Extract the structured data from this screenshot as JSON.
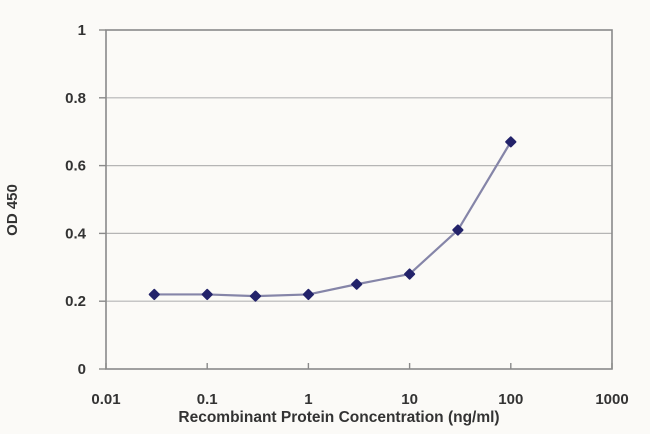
{
  "chart_data": {
    "type": "line",
    "title": "",
    "xlabel": "Recombinant Protein Concentration (ng/ml)",
    "ylabel": "OD 450",
    "x_scale": "log",
    "xlim": [
      0.01,
      1000
    ],
    "ylim": [
      0,
      1
    ],
    "x_ticks": [
      0.01,
      0.1,
      1,
      10,
      100,
      1000
    ],
    "x_tick_labels": [
      "0.01",
      "0.1",
      "1",
      "10",
      "100",
      "1000"
    ],
    "y_ticks": [
      0,
      0.2,
      0.4,
      0.6,
      0.8,
      1
    ],
    "y_tick_labels": [
      "0",
      "0.2",
      "0.4",
      "0.6",
      "0.8",
      "1"
    ],
    "grid": "horizontal",
    "legend": "none",
    "series": [
      {
        "x": [
          0.03,
          0.1,
          0.3,
          1,
          3,
          10,
          30,
          100
        ],
        "y": [
          0.22,
          0.22,
          0.215,
          0.22,
          0.25,
          0.28,
          0.41,
          0.67
        ],
        "marker": "diamond",
        "marker_color": "#23236a",
        "line_color": "#8585a8"
      }
    ]
  },
  "colors": {
    "background": "#fbfaf7",
    "frame": "#8a8a8a",
    "gridline": "#b5b5b5",
    "tick": "#8a8a8a",
    "text": "#333333"
  }
}
